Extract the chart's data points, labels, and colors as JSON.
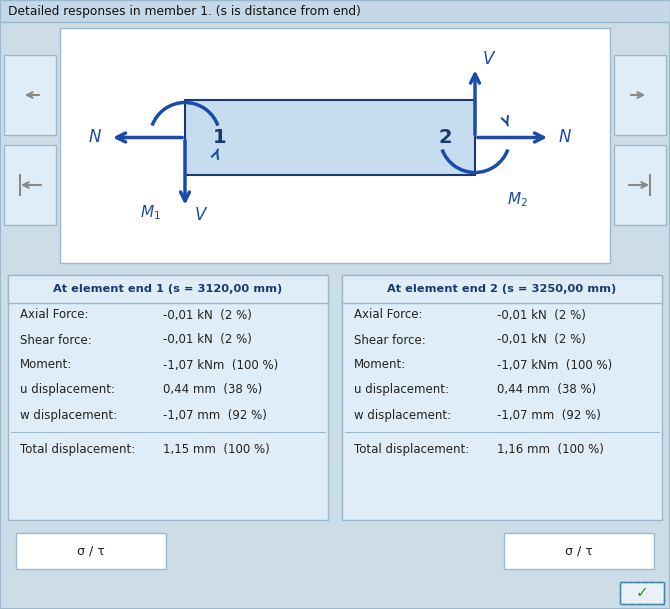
{
  "title": "Detailed responses in member 1. (s is distance from end)",
  "bg_outer": "#ccdde8",
  "bg_white": "#ffffff",
  "bg_panel": "#deedf7",
  "bg_box": "#d0e5f5",
  "border_color": "#9bb8cc",
  "blue_dark": "#1a3a6b",
  "blue_arrow": "#1a4aaa",
  "text_color": "#222222",
  "header_color": "#1a3a6b",
  "end1_header": "At element end 1 (s = 3120,00 mm)",
  "end2_header": "At element end 2 (s = 3250,00 mm)",
  "labels": [
    "Axial Force:",
    "Shear force:",
    "Moment:",
    "u displacement:",
    "w displacement:",
    "Total displacement:"
  ],
  "end1_values": [
    "-0,01 kN  (2 %)",
    "-0,01 kN  (2 %)",
    "-1,07 kNm  (100 %)",
    "0,44 mm  (38 %)",
    "-1,07 mm  (92 %)",
    "1,15 mm  (100 %)"
  ],
  "end2_values": [
    "-0,01 kN  (2 %)",
    "-0,01 kN  (2 %)",
    "-1,07 kNm  (100 %)",
    "0,44 mm  (38 %)",
    "-1,07 mm  (92 %)",
    "1,16 mm  (100 %)"
  ],
  "button_label": "σ / τ",
  "figsize": [
    6.7,
    6.09
  ],
  "dpi": 100
}
